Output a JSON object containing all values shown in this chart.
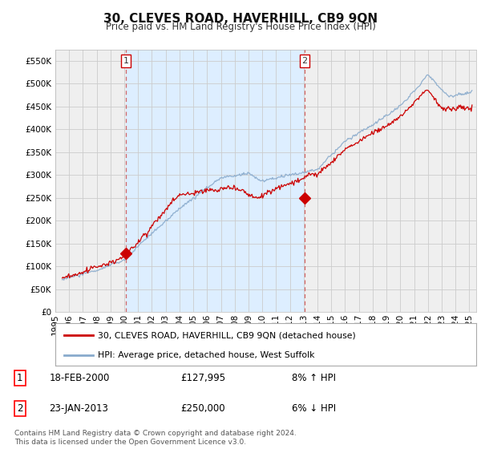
{
  "title": "30, CLEVES ROAD, HAVERHILL, CB9 9QN",
  "subtitle": "Price paid vs. HM Land Registry's House Price Index (HPI)",
  "ylim": [
    0,
    575000
  ],
  "yticks": [
    0,
    50000,
    100000,
    150000,
    200000,
    250000,
    300000,
    350000,
    400000,
    450000,
    500000,
    550000
  ],
  "background_color": "#ffffff",
  "grid_color": "#cccccc",
  "plot_bg_left": "#eeeeee",
  "plot_bg_mid": "#ddeeff",
  "red_color": "#cc0000",
  "blue_color": "#88aacc",
  "marker1_year": 2000.12,
  "marker1_value": 127995,
  "marker2_year": 2013.07,
  "marker2_value": 250000,
  "legend_label_red": "30, CLEVES ROAD, HAVERHILL, CB9 9QN (detached house)",
  "legend_label_blue": "HPI: Average price, detached house, West Suffolk",
  "annotation1_date": "18-FEB-2000",
  "annotation1_price": "£127,995",
  "annotation1_hpi": "8% ↑ HPI",
  "annotation2_date": "23-JAN-2013",
  "annotation2_price": "£250,000",
  "annotation2_hpi": "6% ↓ HPI",
  "footnote": "Contains HM Land Registry data © Crown copyright and database right 2024.\nThis data is licensed under the Open Government Licence v3.0.",
  "xmin": 1995.0,
  "xmax": 2025.5,
  "xstart": 1995.5
}
